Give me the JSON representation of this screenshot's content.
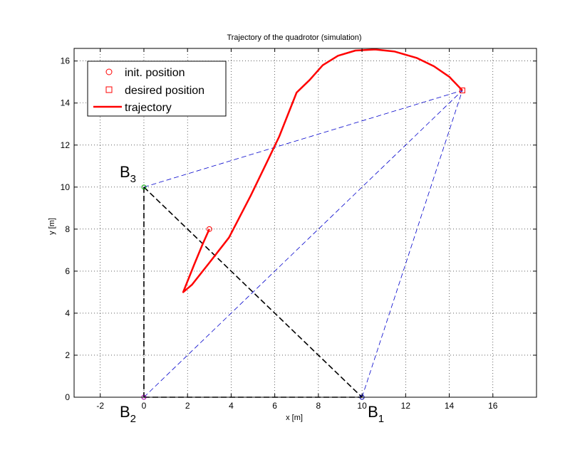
{
  "chart_data": {
    "type": "line",
    "title": "Trajectory of the quadrotor (simulation)",
    "xlabel": "x [m]",
    "ylabel": "y [m]",
    "xlim": [
      -3.2,
      18
    ],
    "ylim": [
      0,
      16.6
    ],
    "xticks": [
      -2,
      0,
      2,
      4,
      6,
      8,
      10,
      12,
      14,
      16
    ],
    "yticks": [
      0,
      2,
      4,
      6,
      8,
      10,
      12,
      14,
      16
    ],
    "grid": true,
    "legend_position": "top-left",
    "legend": [
      {
        "label": "init. position",
        "marker": "circle",
        "color": "#ff0000"
      },
      {
        "label": "desired position",
        "marker": "square",
        "color": "#ff0000"
      },
      {
        "label": "trajectory",
        "marker": "line",
        "color": "#ff0000"
      }
    ],
    "anchors": [
      {
        "name": "B",
        "sub": "1",
        "x": 10,
        "y": 0,
        "color": "#0000aa",
        "label_side": "below-right"
      },
      {
        "name": "B",
        "sub": "2",
        "x": 0,
        "y": 0,
        "color": "#aa00aa",
        "label_side": "below-left"
      },
      {
        "name": "B",
        "sub": "3",
        "x": 0,
        "y": 10,
        "color": "#00aa00",
        "label_side": "above-left"
      }
    ],
    "init_position": {
      "x": 3,
      "y": 8
    },
    "desired_position": {
      "x": 14.6,
      "y": 14.6
    },
    "trajectory": [
      [
        3.0,
        8.0
      ],
      [
        2.7,
        7.3
      ],
      [
        2.3,
        6.3
      ],
      [
        1.8,
        5.0
      ],
      [
        2.2,
        5.35
      ],
      [
        3.0,
        6.4
      ],
      [
        3.9,
        7.6
      ],
      [
        4.9,
        9.6
      ],
      [
        5.6,
        11.1
      ],
      [
        6.2,
        12.4
      ],
      [
        7.0,
        14.5
      ],
      [
        7.6,
        15.1
      ],
      [
        8.2,
        15.8
      ],
      [
        8.9,
        16.25
      ],
      [
        9.7,
        16.5
      ],
      [
        10.6,
        16.55
      ],
      [
        11.5,
        16.45
      ],
      [
        12.5,
        16.15
      ],
      [
        13.3,
        15.75
      ],
      [
        14.0,
        15.25
      ],
      [
        14.6,
        14.6
      ]
    ],
    "black_dashed_segments": [
      [
        [
          0,
          10
        ],
        [
          0,
          0
        ]
      ],
      [
        [
          0,
          0
        ],
        [
          10,
          0
        ]
      ],
      [
        [
          0,
          10
        ],
        [
          10,
          0
        ]
      ]
    ],
    "blue_dashed_segments": [
      [
        [
          0,
          10
        ],
        [
          14.6,
          14.6
        ]
      ],
      [
        [
          0,
          0
        ],
        [
          14.6,
          14.6
        ]
      ],
      [
        [
          10,
          0
        ],
        [
          14.6,
          14.6
        ]
      ]
    ],
    "colors": {
      "trajectory": "#ff0000",
      "black_dash": "#000000",
      "blue_dash": "#0000cc",
      "grid": "#000000"
    }
  }
}
